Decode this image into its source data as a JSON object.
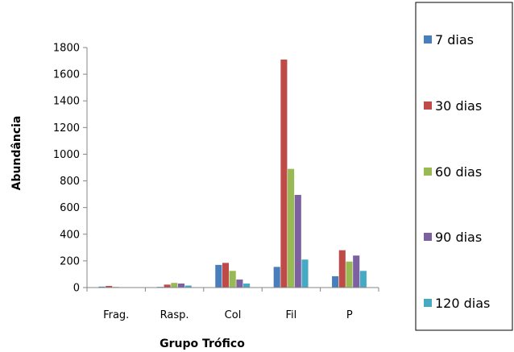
{
  "chart_data": {
    "type": "bar",
    "xlabel": "Grupo Trófico",
    "ylabel": "Abundância",
    "ylim": [
      0,
      1800
    ],
    "yticks": [
      0,
      200,
      400,
      600,
      800,
      1000,
      1200,
      1400,
      1600,
      1800
    ],
    "grid": false,
    "legend_position": "right",
    "categories": [
      "Frag.",
      "Rasp.",
      "Col",
      "Fil",
      "P"
    ],
    "series": [
      {
        "name": "7 dias",
        "color": "#4a7ebb",
        "values": [
          7,
          5,
          170,
          155,
          85
        ]
      },
      {
        "name": "30 dias",
        "color": "#be4b48",
        "values": [
          12,
          22,
          185,
          1710,
          280
        ]
      },
      {
        "name": "60 dias",
        "color": "#98b954",
        "values": [
          5,
          35,
          125,
          890,
          195
        ]
      },
      {
        "name": "90 dias",
        "color": "#7d60a0",
        "values": [
          0,
          30,
          60,
          695,
          240
        ]
      },
      {
        "name": "120 dias",
        "color": "#46aac5",
        "values": [
          0,
          15,
          30,
          210,
          125
        ]
      }
    ]
  }
}
